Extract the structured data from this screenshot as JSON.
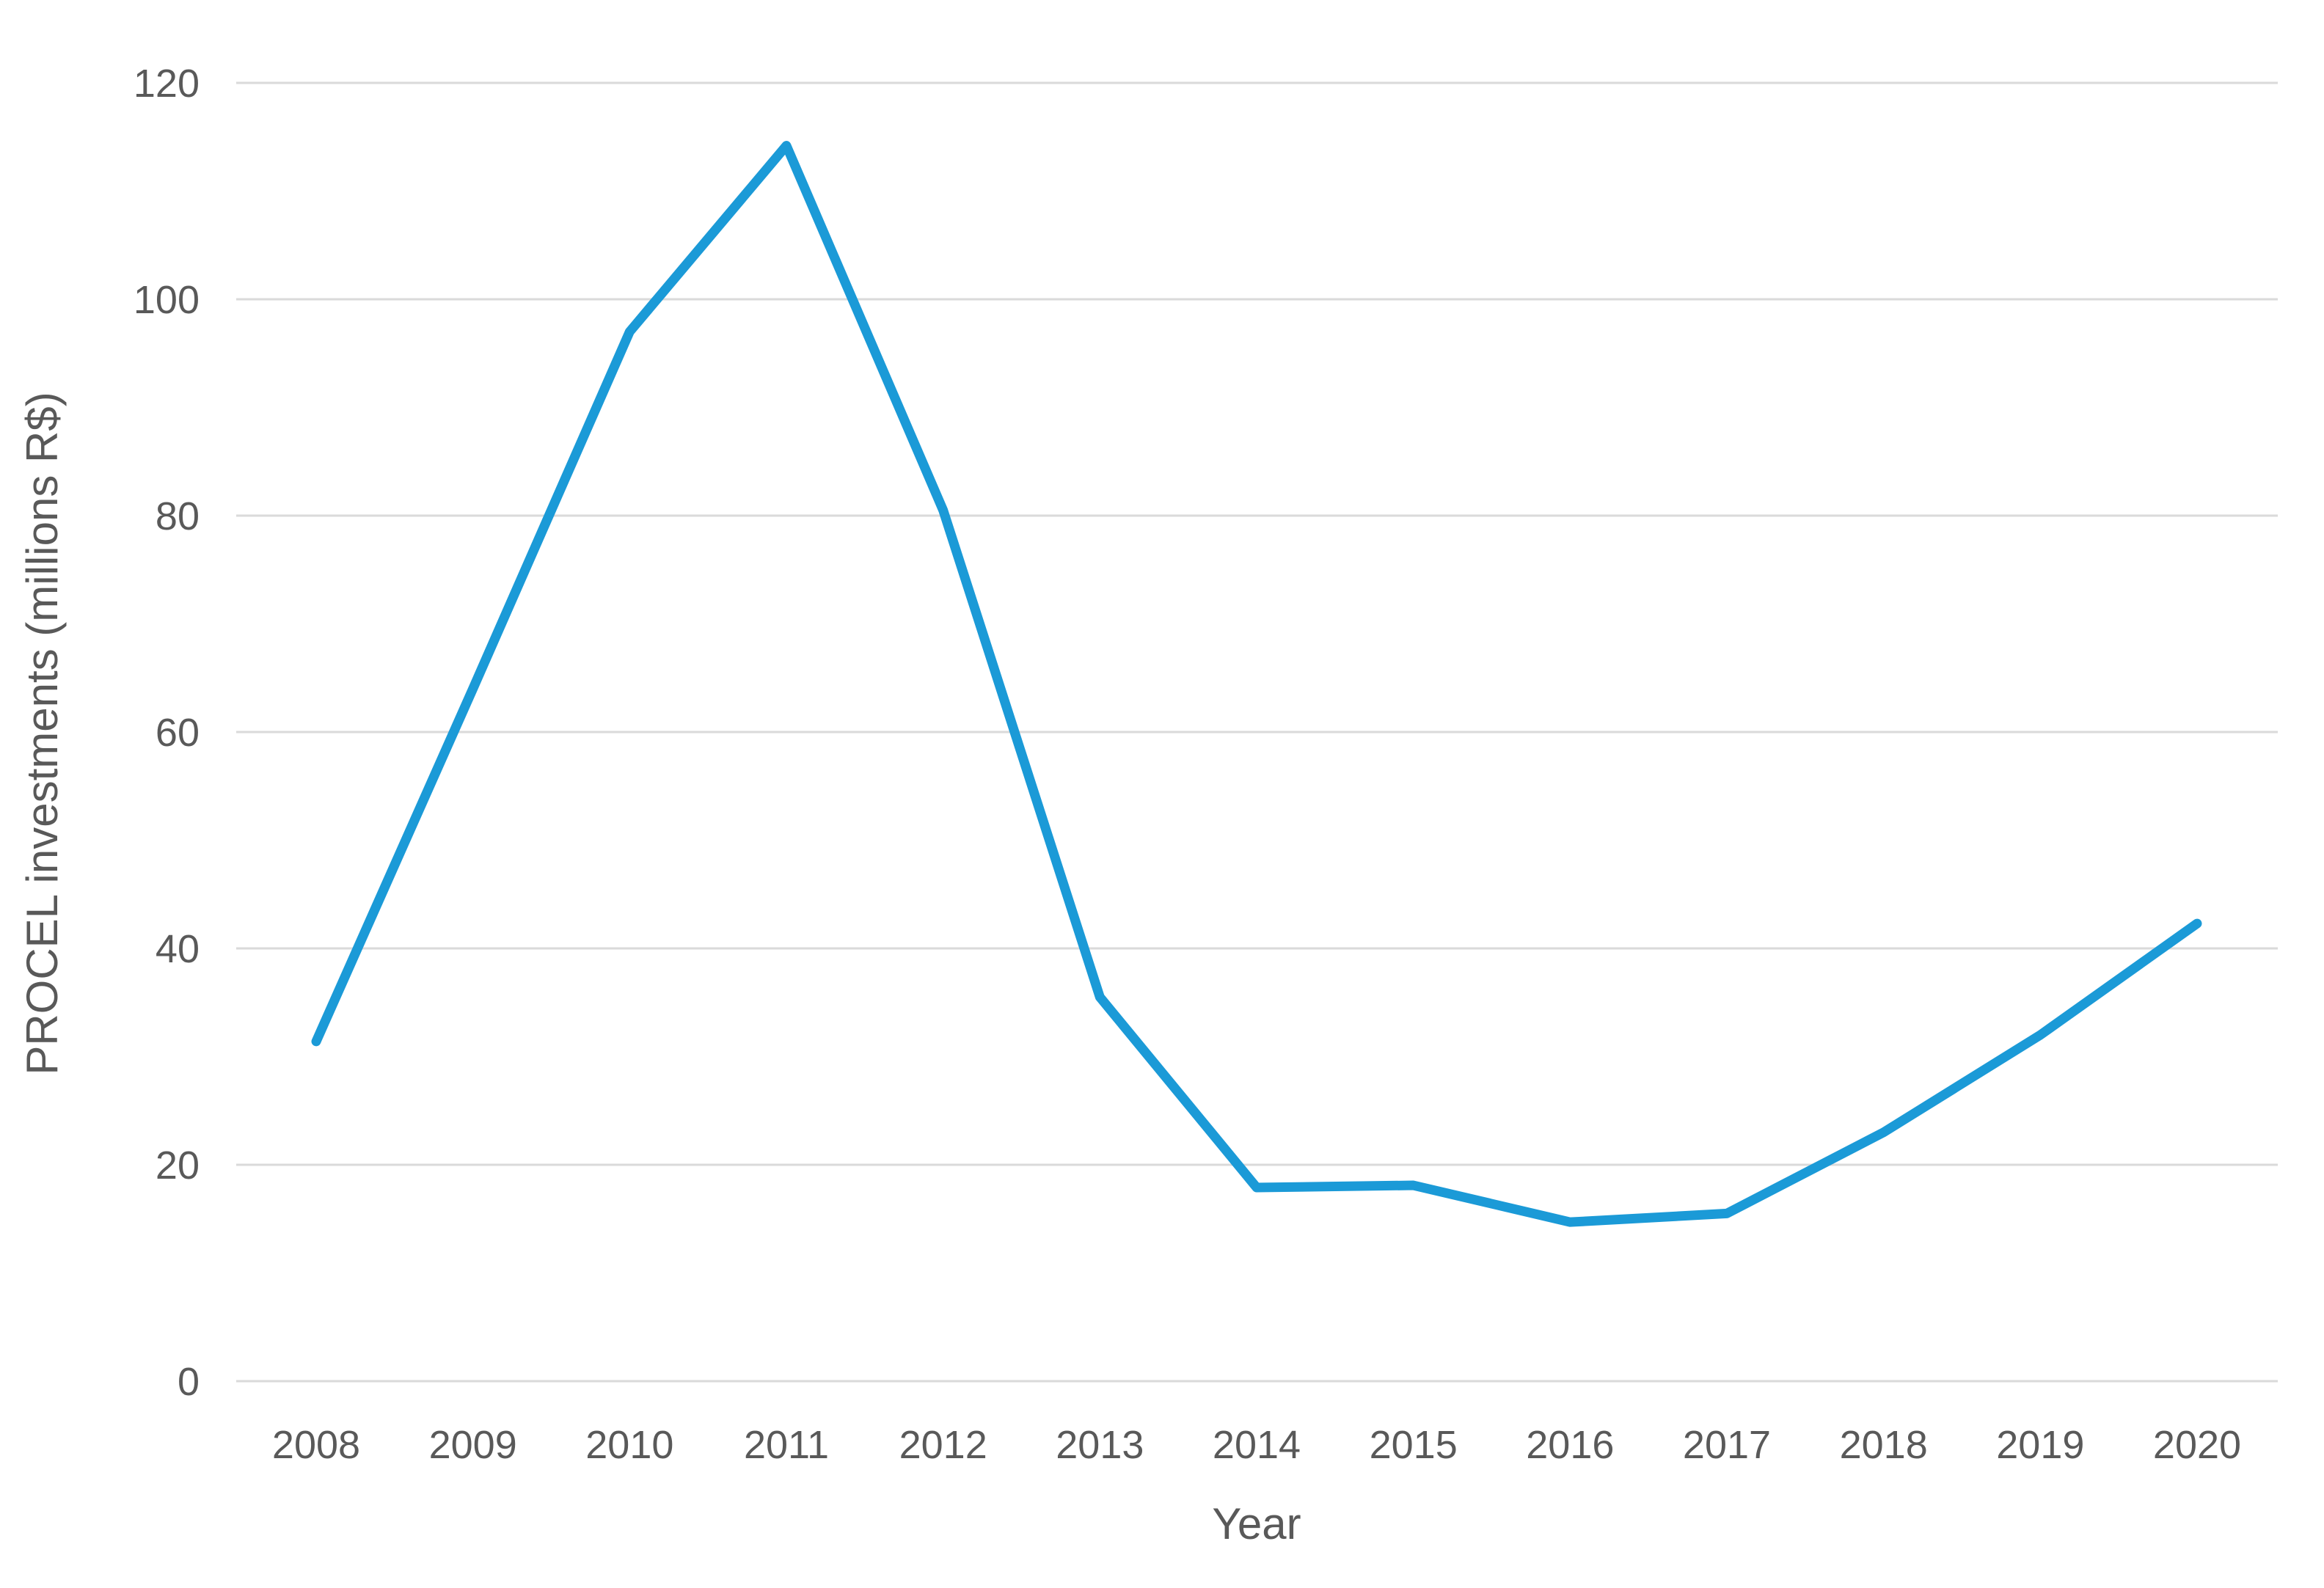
{
  "chart_data": {
    "type": "line",
    "title": "",
    "xlabel": "Year",
    "ylabel": "PROCEL investments (millions R$)",
    "categories": [
      "2008",
      "2009",
      "2010",
      "2011",
      "2012",
      "2013",
      "2014",
      "2015",
      "2016",
      "2017",
      "2018",
      "2019",
      "2020"
    ],
    "series": [
      {
        "name": "PROCEL investments",
        "values": [
          31.4,
          64.0,
          97.0,
          114.2,
          80.5,
          35.5,
          17.9,
          18.1,
          14.7,
          15.5,
          23.0,
          32.0,
          42.3
        ]
      }
    ],
    "ylim": [
      0,
      120
    ],
    "yticks": [
      0,
      20,
      40,
      60,
      80,
      100,
      120
    ],
    "grid": "horizontal-only",
    "legend_position": "none",
    "colors": {
      "line": "#1b9ad7",
      "gridline": "#dadada",
      "axis_text": "#595959"
    }
  }
}
